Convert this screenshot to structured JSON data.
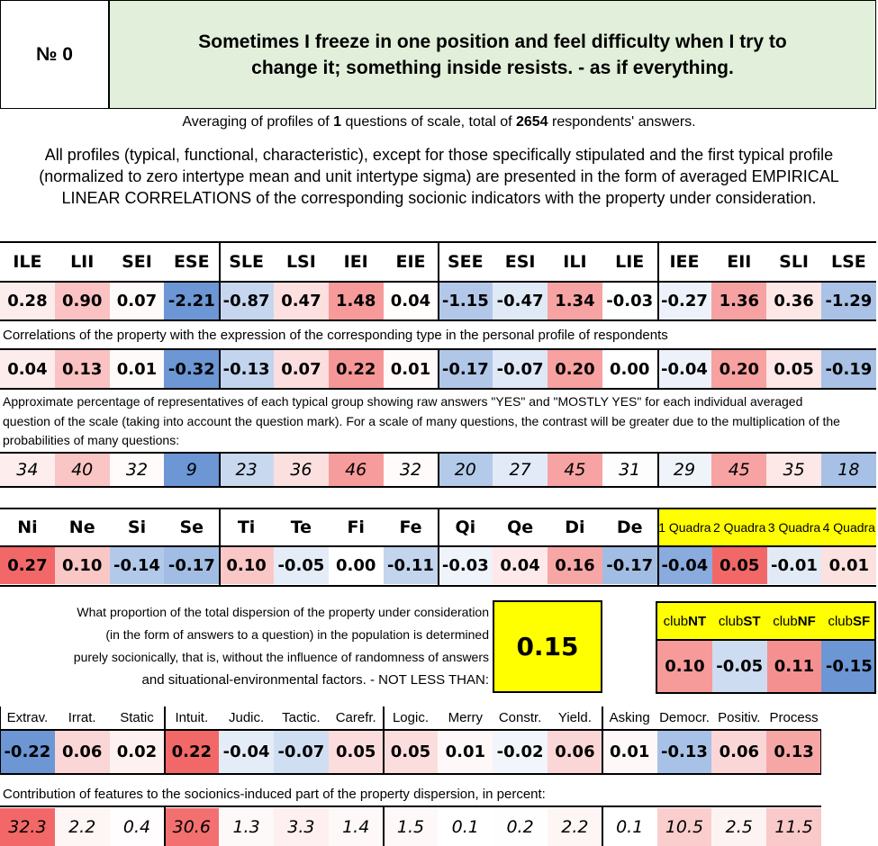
{
  "header": {
    "number": "№ 0",
    "title": "Sometimes I freeze in one position and feel difficulty when I try to change it; something inside resists. - as if everything."
  },
  "summary": {
    "text_before": "Averaging of profiles of",
    "questions": 1,
    "text_middle": "questions of scale, total of",
    "respondents": 2654,
    "text_after": "respondents' answers."
  },
  "description": "All profiles (typical, functional, characteristic), except for those specifically stipulated and the first typical profile (normalized to zero intertype mean and unit intertype sigma) are presented in the form of averaged EMPIRICAL LINEAR CORRELATIONS of the corresponding socionic indicators with the property under consideration.",
  "types": {
    "names": [
      "ILE",
      "LII",
      "SEI",
      "ESE",
      "SLE",
      "LSI",
      "IEI",
      "EIE",
      "SEE",
      "ESI",
      "ILI",
      "LIE",
      "IEE",
      "EII",
      "SLI",
      "LSE"
    ],
    "profile": [
      "0.28",
      "0.90",
      "0.07",
      "-2.21",
      "-0.87",
      "0.47",
      "1.48",
      "0.04",
      "-1.15",
      "-0.47",
      "1.34",
      "-0.03",
      "-0.27",
      "1.36",
      "0.36",
      "-1.29"
    ],
    "correlation_caption": "Correlations of the property with the expression of the corresponding type in the personal profile of respondents",
    "correlations": [
      "0.04",
      "0.13",
      "0.01",
      "-0.32",
      "-0.13",
      "0.07",
      "0.22",
      "0.01",
      "-0.17",
      "-0.07",
      "0.20",
      "0.00",
      "-0.04",
      "0.20",
      "0.05",
      "-0.19"
    ],
    "percent_caption": "Approximate percentage of representatives of each typical group showing raw answers \"YES\" and \"MOSTLY YES\" for each individual averaged question of the scale (taking into account the question mark). For a scale of many questions, the contrast will be greater due to the multiplication of the probabilities of many questions:",
    "percent_yes": [
      "34",
      "40",
      "32",
      "9",
      "23",
      "36",
      "46",
      "32",
      "20",
      "27",
      "45",
      "31",
      "29",
      "45",
      "35",
      "18"
    ]
  },
  "functions": {
    "names": [
      "Ni",
      "Ne",
      "Si",
      "Se",
      "Ti",
      "Te",
      "Fi",
      "Fe",
      "Qi",
      "Qe",
      "Di",
      "De"
    ],
    "values": [
      "0.27",
      "0.10",
      "-0.14",
      "-0.17",
      "0.10",
      "-0.05",
      "0.00",
      "-0.11",
      "-0.03",
      "0.04",
      "0.16",
      "-0.17"
    ],
    "quadra_labels": [
      "1 Quadra",
      "2 Quadra",
      "3 Quadra",
      "4 Quadra"
    ],
    "quadra_values": [
      "-0.04",
      "0.05",
      "-0.01",
      "0.01"
    ]
  },
  "dispersion": {
    "lines": [
      "What proportion of the total dispersion of the property under consideration",
      "(in the form of answers to a question) in the population is determined",
      "purely socionically, that is, without the influence of randomness of answers",
      "and situational-environmental factors. - NOT LESS THAN:"
    ],
    "value": "0.15"
  },
  "clubs": {
    "names": [
      {
        "prefix": "club",
        "code": "NT"
      },
      {
        "prefix": "club",
        "code": "ST"
      },
      {
        "prefix": "club",
        "code": "NF"
      },
      {
        "prefix": "club",
        "code": "SF"
      }
    ],
    "values": [
      "0.10",
      "-0.05",
      "0.11",
      "-0.15"
    ]
  },
  "traits": {
    "names": [
      "Extrav.",
      "Irrat.",
      "Static",
      "Intuit.",
      "Judic.",
      "Tactic.",
      "Carefr.",
      "Logic.",
      "Merry",
      "Constr.",
      "Yield.",
      "Asking",
      "Democr.",
      "Positiv.",
      "Process"
    ],
    "values": [
      "-0.22",
      "0.06",
      "0.02",
      "0.22",
      "-0.04",
      "-0.07",
      "0.05",
      "0.05",
      "0.01",
      "-0.02",
      "0.06",
      "0.01",
      "-0.13",
      "0.06",
      "0.13"
    ],
    "contribution_caption": "Contribution of features to the socionics-induced part of the property dispersion, in percent:",
    "contributions": [
      "32.3",
      "2.2",
      "0.4",
      "30.6",
      "1.3",
      "3.3",
      "1.4",
      "1.5",
      "0.1",
      "0.2",
      "2.2",
      "0.1",
      "10.5",
      "2.5",
      "11.5"
    ]
  }
}
